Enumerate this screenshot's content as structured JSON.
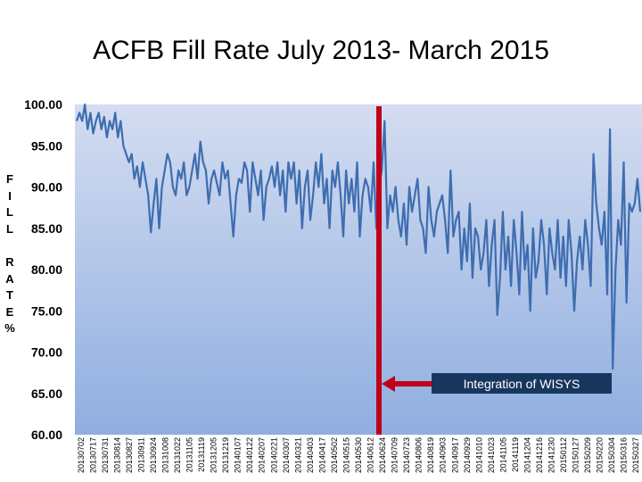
{
  "chart_data": {
    "type": "line",
    "title": "ACFB Fill Rate July 2013- March 2015",
    "ylabel": "FILL RATE%",
    "ylim": [
      60,
      100
    ],
    "yticks": [
      "60.00",
      "65.00",
      "70.00",
      "75.00",
      "80.00",
      "85.00",
      "90.00",
      "95.00",
      "100.00"
    ],
    "xlabel": "",
    "x_tick_labels": [
      "20130702",
      "20130717",
      "20130731",
      "20130814",
      "20130827",
      "20130911",
      "20130924",
      "20131008",
      "20131022",
      "20131105",
      "20131119",
      "20131205",
      "20131219",
      "20140107",
      "20140122",
      "20140207",
      "20140221",
      "20140307",
      "20140321",
      "20140403",
      "20140417",
      "20140502",
      "20140515",
      "20140530",
      "20140612",
      "20140624",
      "20140709",
      "20140723",
      "20140806",
      "20140819",
      "20140903",
      "20140917",
      "20140929",
      "20141010",
      "20141023",
      "20141105",
      "20141119",
      "20141204",
      "20141216",
      "20141230",
      "20150112",
      "20150127",
      "20150209",
      "20150220",
      "20150304",
      "20150316",
      "20150327"
    ],
    "series": [
      {
        "color": "#3e6db0",
        "values": [
          98,
          99,
          98,
          100,
          97,
          99,
          96.5,
          98,
          99,
          97,
          98.5,
          96,
          98,
          97,
          99,
          96,
          98,
          95,
          94,
          93,
          94,
          91,
          92.5,
          90,
          93,
          91,
          89,
          84.5,
          88,
          91,
          85,
          90,
          92,
          94,
          93,
          90,
          89,
          92,
          91,
          93,
          89,
          90,
          92,
          94,
          91,
          95.5,
          93,
          92,
          88,
          91,
          92,
          90.5,
          89,
          93,
          91,
          92,
          88,
          84,
          89,
          91,
          90.5,
          93,
          92,
          87,
          93,
          91,
          89,
          92,
          86,
          90,
          91,
          92.5,
          90,
          93,
          89,
          92,
          87,
          93,
          91,
          93,
          88,
          92,
          85,
          90,
          92,
          86,
          89,
          93,
          90,
          94,
          88,
          91,
          85,
          92,
          90,
          93,
          89,
          84,
          92,
          88,
          91,
          87,
          93,
          84,
          89,
          91,
          90,
          87,
          93,
          85,
          90,
          92,
          98,
          85,
          89,
          87,
          90,
          86,
          84,
          88,
          83,
          90,
          87,
          89,
          91,
          86,
          85,
          82,
          90,
          86,
          84,
          87,
          88,
          89,
          86,
          82,
          92,
          84,
          86,
          87,
          80,
          85,
          81,
          88,
          79,
          85,
          84,
          80,
          82,
          86,
          78,
          83,
          86,
          74.5,
          79,
          87,
          80,
          84,
          78,
          86,
          82,
          77,
          87,
          80,
          83,
          75,
          85,
          79,
          81,
          86,
          83,
          77,
          85,
          82,
          80,
          86,
          79,
          84,
          78,
          86,
          82,
          75,
          81,
          84,
          80,
          86,
          83,
          78,
          94,
          88,
          85,
          83,
          87,
          77,
          97,
          68,
          80,
          86,
          83,
          93,
          76,
          88,
          87,
          88,
          91,
          87
        ],
        "note_x_start_index": 0
      }
    ],
    "annotation": {
      "label": "Integration of WISYS"
    },
    "grid": false,
    "legend": "none"
  }
}
